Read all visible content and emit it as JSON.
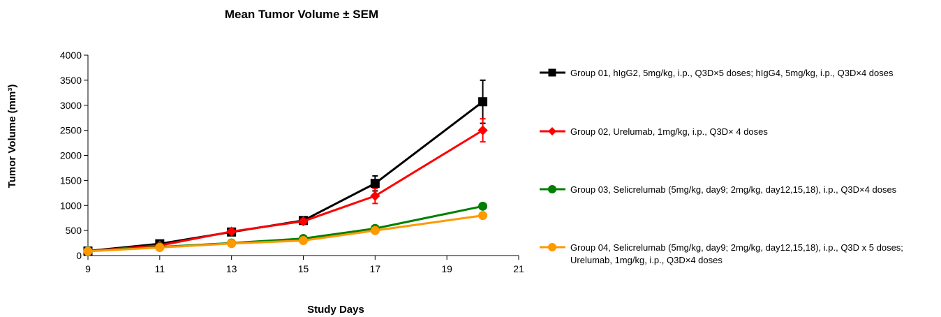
{
  "chart_data": {
    "type": "line",
    "title": "Mean Tumor Volume ± SEM",
    "xlabel": "Study Days",
    "ylabel": "Tumor Volume (mm³)",
    "xlim": [
      9,
      21
    ],
    "ylim": [
      0,
      4000
    ],
    "xticks": [
      "9",
      "11",
      "13",
      "15",
      "17",
      "19",
      "21"
    ],
    "yticks": [
      "0",
      "500",
      "1000",
      "1500",
      "2000",
      "2500",
      "3000",
      "3500",
      "4000"
    ],
    "grid": false,
    "legend_position": "right",
    "series": [
      {
        "name": "Group 01, hIgG2, 5mg/kg, i.p., Q3D×5 doses; hIgG4, 5mg/kg, i.p., Q3D×4 doses",
        "color": "#000000",
        "marker": "square",
        "x": [
          9,
          11,
          13,
          15,
          17,
          20
        ],
        "y": [
          90,
          235,
          470,
          700,
          1440,
          3070
        ],
        "err": [
          15,
          30,
          40,
          50,
          150,
          430
        ]
      },
      {
        "name": "Group 02, Urelumab, 1mg/kg, i.p., Q3D× 4 doses",
        "color": "#ff0000",
        "marker": "diamond",
        "x": [
          9,
          11,
          13,
          15,
          17,
          20
        ],
        "y": [
          90,
          200,
          480,
          685,
          1190,
          2500
        ],
        "err": [
          15,
          30,
          40,
          50,
          150,
          230
        ]
      },
      {
        "name": "Group 03, Selicrelumab (5mg/kg, day9; 2mg/kg, day12,15,18), i.p., Q3D×4 doses",
        "color": "#008000",
        "marker": "circle",
        "x": [
          9,
          11,
          13,
          15,
          17,
          20
        ],
        "y": [
          90,
          170,
          250,
          340,
          540,
          985
        ],
        "err": [
          10,
          15,
          20,
          25,
          30,
          40
        ]
      },
      {
        "name": "Group 04, Selicrelumab (5mg/kg, day9; 2mg/kg, day12,15,18), i.p., Q3D x 5 doses; Urelumab, 1mg/kg, i.p., Q3D×4 doses",
        "name_lines": [
          "Group 04, Selicrelumab (5mg/kg, day9; 2mg/kg, day12,15,18), i.p., Q3D x 5 doses;",
          "Urelumab, 1mg/kg, i.p., Q3D×4 doses"
        ],
        "color": "#ff9900",
        "marker": "circle",
        "x": [
          9,
          11,
          13,
          15,
          17,
          20
        ],
        "y": [
          85,
          160,
          240,
          300,
          500,
          800
        ],
        "err": [
          10,
          15,
          20,
          25,
          30,
          40
        ]
      }
    ]
  }
}
